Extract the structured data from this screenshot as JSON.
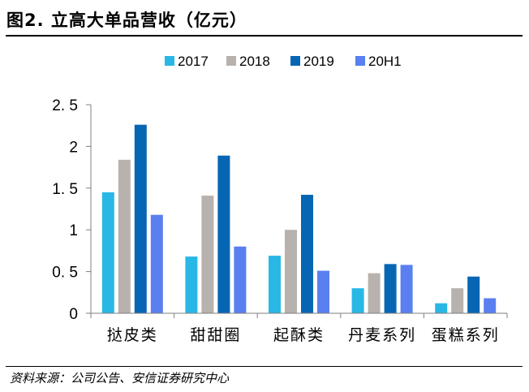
{
  "header": {
    "title": "图2. 立高大单品营收（亿元）"
  },
  "footer": {
    "source": "资料来源：公司公告、安信证券研究中心"
  },
  "colors": {
    "2017": "#29b8e6",
    "2018": "#b8b2ae",
    "2019": "#0766b4",
    "20H1": "#5a7ff0"
  },
  "chart_data": {
    "type": "bar",
    "title": "",
    "xlabel": "",
    "ylabel": "",
    "ylim": [
      0,
      2.5
    ],
    "yticks": [
      "2. 5",
      "2",
      "1. 5",
      "1",
      "0. 5",
      "0"
    ],
    "ytick_values": [
      2.5,
      2,
      1.5,
      1,
      0.5,
      0
    ],
    "legend": "top",
    "grid": false,
    "categories": [
      "挞皮类",
      "甜甜圈",
      "起酥类",
      "丹麦系列",
      "蛋糕系列"
    ],
    "series": [
      {
        "name": "2017",
        "values": [
          1.45,
          0.68,
          0.69,
          0.3,
          0.12
        ]
      },
      {
        "name": "2018",
        "values": [
          1.84,
          1.41,
          1.0,
          0.48,
          0.3
        ]
      },
      {
        "name": "2019",
        "values": [
          2.26,
          1.89,
          1.42,
          0.59,
          0.44
        ]
      },
      {
        "name": "20H1",
        "values": [
          1.18,
          0.8,
          0.51,
          0.58,
          0.18
        ]
      }
    ]
  }
}
